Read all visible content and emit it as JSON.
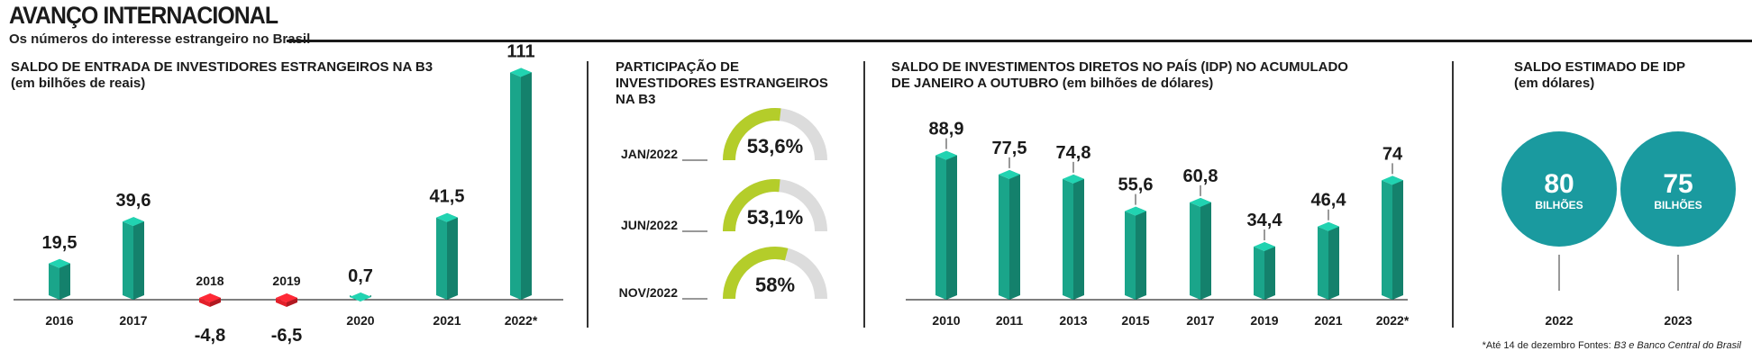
{
  "header": {
    "title": "AVANÇO INTERNACIONAL",
    "subtitle": "Os números do interesse estrangeiro no Brasil"
  },
  "footnote": {
    "note": "*Até 14 de dezembro",
    "sources_label": "Fontes:",
    "sources": "B3 e Banco Central do Brasil"
  },
  "colors": {
    "positive": "#1aa58a",
    "negative": "#e3202a",
    "gauge_fill": "#b4cd2a",
    "gauge_track": "#dcdcdc",
    "circle": "#1a9a9f"
  },
  "chart_data": [
    {
      "type": "bar",
      "title": "SALDO DE ENTRADA DE INVESTIDORES ESTRANGEIROS NA B3",
      "subtitle": "(em bilhões de reais)",
      "categories": [
        "2016",
        "2017",
        "2018",
        "2019",
        "2020",
        "2021",
        "2022*"
      ],
      "values": [
        19.5,
        39.6,
        -4.8,
        -6.5,
        0.7,
        41.5,
        111
      ],
      "value_labels": [
        "19,5",
        "39,6",
        "-4,8",
        "-6,5",
        "0,7",
        "41,5",
        "111"
      ]
    },
    {
      "type": "pie",
      "title": "PARTICIPAÇÃO DE INVESTIDORES ESTRANGEIROS NA B3",
      "categories": [
        "JAN/2022",
        "JUN/2022",
        "NOV/2022"
      ],
      "values": [
        53.6,
        53.1,
        58
      ],
      "value_labels": [
        "53,6%",
        "53,1%",
        "58%"
      ]
    },
    {
      "type": "bar",
      "title": "SALDO DE INVESTIMENTOS DIRETOS NO PAÍS (IDP) NO ACUMULADO",
      "subtitle": "DE JANEIRO A OUTUBRO (em bilhões de dólares)",
      "categories": [
        "2010",
        "2011",
        "2013",
        "2015",
        "2017",
        "2019",
        "2021",
        "2022*"
      ],
      "values": [
        88.9,
        77.5,
        74.8,
        55.6,
        60.8,
        34.4,
        46.4,
        74
      ],
      "value_labels": [
        "88,9",
        "77,5",
        "74,8",
        "55,6",
        "60,8",
        "34,4",
        "46,4",
        "74"
      ]
    },
    {
      "type": "table",
      "title": "SALDO ESTIMADO DE IDP",
      "subtitle": "(em dólares)",
      "categories": [
        "2022",
        "2023"
      ],
      "values": [
        80,
        75
      ],
      "value_labels": [
        "80",
        "75"
      ],
      "unit": "BILHÕES"
    }
  ]
}
